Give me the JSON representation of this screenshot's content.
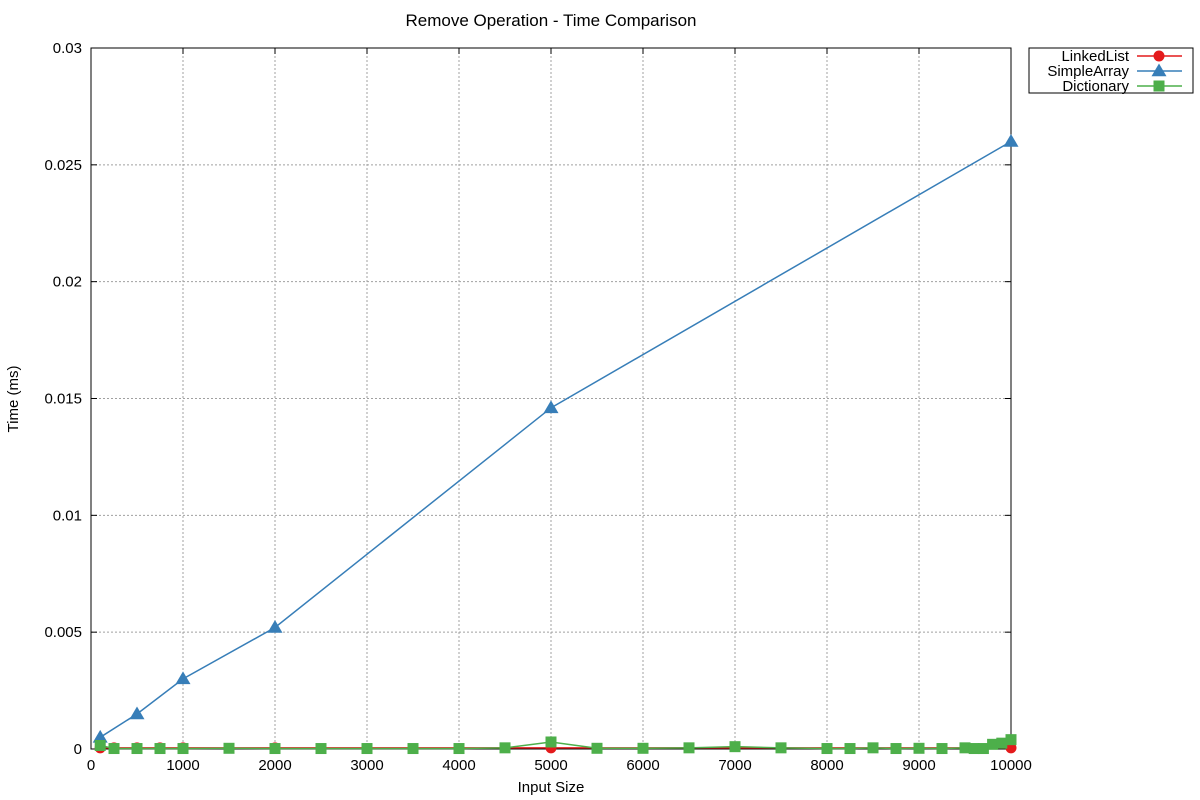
{
  "chart_data": {
    "type": "line",
    "title": "Remove Operation - Time Comparison",
    "xlabel": "Input Size",
    "ylabel": "Time (ms)",
    "xlim": [
      0,
      10000
    ],
    "ylim": [
      0,
      0.03
    ],
    "x_ticks": [
      "0",
      "1000",
      "2000",
      "3000",
      "4000",
      "5000",
      "6000",
      "7000",
      "8000",
      "9000",
      "10000"
    ],
    "y_ticks": [
      "0",
      "0.005",
      "0.01",
      "0.015",
      "0.02",
      "0.025",
      "0.03"
    ],
    "x_tick_values": [
      0,
      1000,
      2000,
      3000,
      4000,
      5000,
      6000,
      7000,
      8000,
      9000,
      10000
    ],
    "y_tick_values": [
      0,
      0.005,
      0.01,
      0.015,
      0.02,
      0.025,
      0.03
    ],
    "grid": true,
    "legend_position": "top-right-outside",
    "series": [
      {
        "name": "LinkedList",
        "color": "#e41a1c",
        "marker": "circle",
        "points": [
          [
            100,
            5e-05
          ],
          [
            250,
            5e-05
          ],
          [
            500,
            5e-05
          ],
          [
            750,
            5e-05
          ],
          [
            1000,
            5e-05
          ],
          [
            2000,
            5e-05
          ],
          [
            5000,
            5e-05
          ],
          [
            10000,
            5e-05
          ]
        ]
      },
      {
        "name": "SimpleArray",
        "color": "#377eb8",
        "marker": "triangle",
        "points": [
          [
            100,
            0.0005
          ],
          [
            500,
            0.0015
          ],
          [
            1000,
            0.003
          ],
          [
            2000,
            0.0052
          ],
          [
            5000,
            0.0146
          ],
          [
            10000,
            0.026
          ]
        ]
      },
      {
        "name": "Dictionary",
        "color": "#4daf4a",
        "marker": "square",
        "points": [
          [
            100,
            0.00015
          ],
          [
            250,
            2e-05
          ],
          [
            500,
            2e-05
          ],
          [
            750,
            2e-05
          ],
          [
            1000,
            2e-05
          ],
          [
            1500,
            3e-05
          ],
          [
            2000,
            2e-05
          ],
          [
            2500,
            2e-05
          ],
          [
            3000,
            2e-05
          ],
          [
            3500,
            2e-05
          ],
          [
            4000,
            2e-05
          ],
          [
            4500,
            5e-05
          ],
          [
            5000,
            0.0003
          ],
          [
            5500,
            3e-05
          ],
          [
            6000,
            3e-05
          ],
          [
            6500,
            5e-05
          ],
          [
            7000,
            0.0001
          ],
          [
            7500,
            5e-05
          ],
          [
            8000,
            2e-05
          ],
          [
            8250,
            2e-05
          ],
          [
            8500,
            5e-05
          ],
          [
            8750,
            2e-05
          ],
          [
            9000,
            3e-05
          ],
          [
            9250,
            2e-05
          ],
          [
            9500,
            5e-05
          ],
          [
            9600,
            2e-05
          ],
          [
            9700,
            2e-05
          ],
          [
            9800,
            0.0002
          ],
          [
            9900,
            0.00025
          ],
          [
            10000,
            0.0004
          ]
        ]
      }
    ]
  }
}
